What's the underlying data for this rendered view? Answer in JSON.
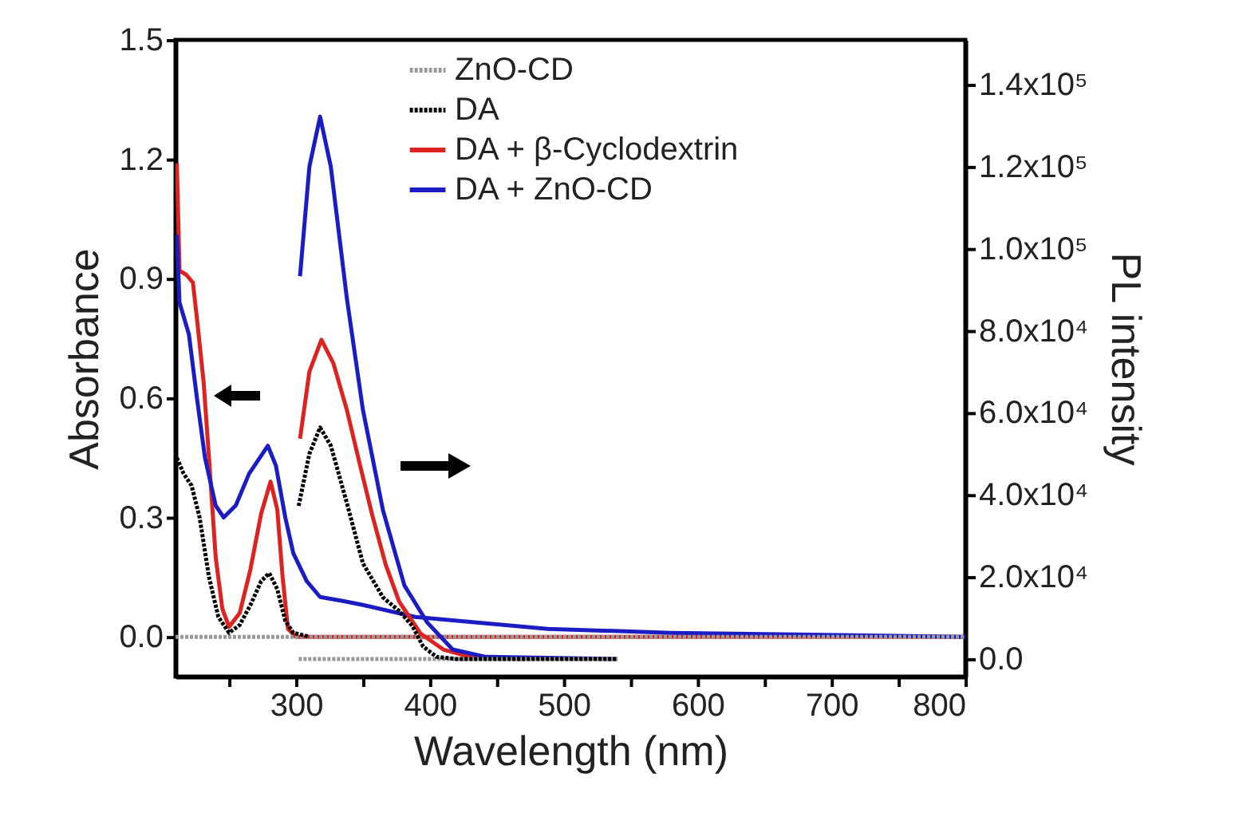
{
  "chart_data": {
    "type": "line",
    "xlabel": "Wavelength  (nm)",
    "ylabel": "Absorbance",
    "y2label": "PL intensity",
    "xlim": [
      210,
      800
    ],
    "xticks": [
      {
        "value": 250,
        "label": null
      },
      300,
      {
        "value": 350,
        "label": null
      },
      400,
      {
        "value": 450,
        "label": null
      },
      500,
      {
        "value": 550,
        "label": null
      },
      600,
      {
        "value": 650,
        "label": null
      },
      700,
      {
        "value": 750,
        "label": null
      },
      800
    ],
    "ylim": [
      -0.1,
      1.5
    ],
    "yticks": [
      {
        "value": 0,
        "label": "0.0"
      },
      0.3,
      0.6,
      0.9,
      1.2,
      1.5
    ],
    "y2lim": [
      -4300,
      150900
    ],
    "y2ticks": [
      {
        "value": 0,
        "label": "0.0"
      },
      {
        "value": 20000,
        "label": "2.0x10⁴"
      },
      {
        "value": 40000,
        "label": "4.0x10⁴"
      },
      {
        "value": 60000,
        "label": "6.0x10⁴"
      },
      {
        "value": 80000,
        "label": "8.0x10⁴"
      },
      {
        "value": 100000,
        "label": "1.0x10⁵"
      },
      {
        "value": 120000,
        "label": "1.2x10⁵"
      },
      {
        "value": 140000,
        "label": "1.4x10⁵"
      }
    ],
    "legend": "top right",
    "series": [
      {
        "name": "ZnO-CD",
        "color": "#999999",
        "line_style": "dotted",
        "x": [
          210,
          800
        ],
        "values": [
          0,
          0
        ]
      },
      {
        "name": "DA",
        "color": "#000000",
        "line_style": "dotted",
        "x": [
          211,
          216,
          222,
          228,
          235,
          242,
          250,
          258,
          266,
          274,
          280,
          286,
          292,
          298,
          310
        ],
        "values": [
          0.45,
          0.41,
          0.38,
          0.3,
          0.15,
          0.05,
          0.01,
          0.03,
          0.08,
          0.14,
          0.16,
          0.12,
          0.04,
          0.01,
          0
        ]
      },
      {
        "name": "DA + β-Cyclodextrin",
        "color": "#dd2222",
        "line_style": "solid",
        "x": [
          211,
          213,
          218,
          223,
          226,
          231,
          235,
          240,
          245,
          250,
          258,
          266,
          274,
          281,
          286,
          290,
          294,
          300,
          400,
          800
        ],
        "values": [
          1.19,
          0.92,
          0.91,
          0.89,
          0.8,
          0.64,
          0.45,
          0.2,
          0.07,
          0.025,
          0.06,
          0.17,
          0.31,
          0.39,
          0.32,
          0.15,
          0.02,
          0,
          0,
          0
        ]
      },
      {
        "name": "DA + ZnO-CD",
        "color": "#1c1cc4",
        "line_style": "solid",
        "x": [
          211,
          213,
          220,
          226,
          232,
          240,
          246,
          255,
          265,
          279,
          285,
          292,
          298,
          308,
          318,
          335,
          350,
          389,
          488,
          580,
          800
        ],
        "values": [
          1.01,
          0.84,
          0.76,
          0.6,
          0.45,
          0.33,
          0.3,
          0.33,
          0.41,
          0.48,
          0.43,
          0.3,
          0.21,
          0.14,
          0.1,
          0.09,
          0.08,
          0.05,
          0.02,
          0.01,
          0
        ]
      },
      {
        "color": "#999999",
        "line_style": "dotted",
        "axis": "y2",
        "x": [
          302,
          540
        ],
        "values": [
          0,
          0
        ]
      },
      {
        "color": "#000000",
        "line_style": "dotted",
        "axis": "y2",
        "x": [
          302,
          310,
          318,
          326,
          338,
          350,
          365,
          377,
          387,
          395,
          405,
          420,
          540
        ],
        "values": [
          37300,
          50000,
          56400,
          52000,
          38000,
          23300,
          15000,
          11700,
          8000,
          3000,
          500,
          0,
          0
        ]
      },
      {
        "color": "#dd2222",
        "line_style": "solid",
        "axis": "y2",
        "x": [
          303,
          310,
          319,
          328,
          338,
          348,
          357,
          367,
          377,
          393,
          410,
          430,
          469
        ],
        "values": [
          53700,
          70000,
          77800,
          72000,
          60700,
          47000,
          35000,
          23000,
          14000,
          6200,
          2300,
          500,
          0
        ]
      },
      {
        "color": "#1c1cc4",
        "line_style": "solid",
        "axis": "y2",
        "x": [
          303,
          310,
          318,
          326,
          338,
          350,
          365,
          381,
          398,
          417,
          442,
          540
        ],
        "values": [
          93300,
          120000,
          132200,
          120000,
          87900,
          60700,
          36200,
          17900,
          8900,
          2300,
          500,
          0
        ]
      }
    ]
  }
}
